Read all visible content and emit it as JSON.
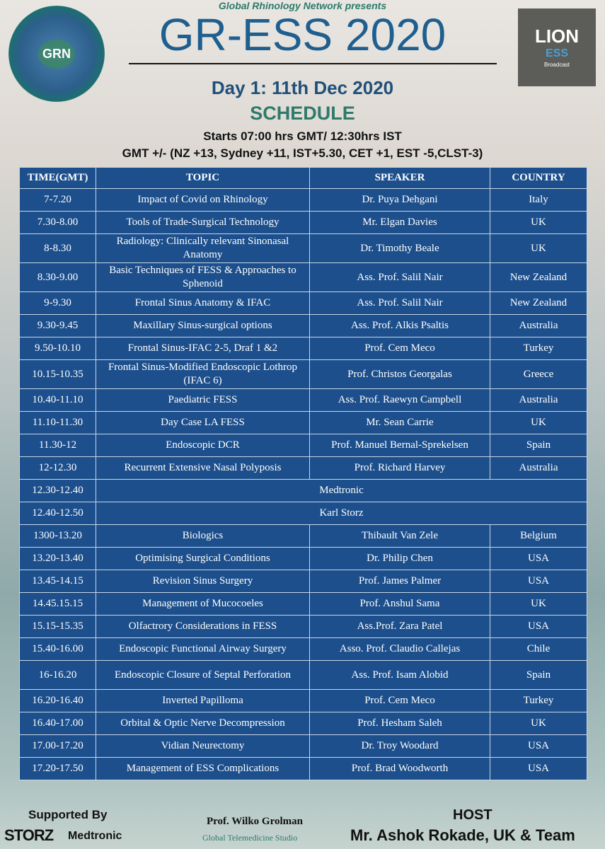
{
  "header": {
    "presents": "Global Rhinology Network presents",
    "title": "GR-ESS 2020",
    "day": "Day 1: 11th Dec 2020",
    "schedule": "SCHEDULE",
    "starts": "Starts 07:00 hrs GMT/ 12:30hrs IST",
    "gmt": "GMT +/- (NZ +13, Sydney +11, IST+5.30, CET +1, EST  -5,CLST-3)"
  },
  "logos": {
    "grn": "GRN",
    "lion": "LION",
    "lion_ess": "ESS",
    "lion_broadcast": "Broadcast"
  },
  "table": {
    "headers": [
      "TIME(GMT)",
      "TOPIC",
      "SPEAKER",
      "COUNTRY"
    ],
    "rows": [
      {
        "time": "7-7.20",
        "topic": "Impact of Covid on Rhinology",
        "speaker": "Dr. Puya Dehgani",
        "country": "Italy"
      },
      {
        "time": "7.30-8.00",
        "topic": "Tools of Trade-Surgical Technology",
        "speaker": "Mr. Elgan Davies",
        "country": "UK"
      },
      {
        "time": "8-8.30",
        "topic": "Radiology: Clinically relevant Sinonasal Anatomy",
        "speaker": "Dr. Timothy Beale",
        "country": "UK",
        "tall": true
      },
      {
        "time": "8.30-9.00",
        "topic": "Basic Techniques of FESS & Approaches to Sphenoid",
        "speaker": "Ass. Prof. Salil Nair",
        "country": "New Zealand",
        "tall": true
      },
      {
        "time": "9-9.30",
        "topic": "Frontal Sinus Anatomy & IFAC",
        "speaker": "Ass. Prof. Salil Nair",
        "country": "New Zealand"
      },
      {
        "time": "9.30-9.45",
        "topic": "Maxillary Sinus-surgical options",
        "speaker": "Ass. Prof. Alkis Psaltis",
        "country": "Australia"
      },
      {
        "time": "9.50-10.10",
        "topic": "Frontal Sinus-IFAC 2-5, Draf 1 &2",
        "speaker": "Prof. Cem Meco",
        "country": "Turkey"
      },
      {
        "time": "10.15-10.35",
        "topic": "Frontal Sinus-Modified Endoscopic Lothrop (IFAC 6)",
        "speaker": "Prof. Christos Georgalas",
        "country": "Greece",
        "tall": true
      },
      {
        "time": "10.40-11.10",
        "topic": "Paediatric FESS",
        "speaker": "Ass. Prof. Raewyn Campbell",
        "country": "Australia"
      },
      {
        "time": "11.10-11.30",
        "topic": "Day Case LA FESS",
        "speaker": "Mr. Sean Carrie",
        "country": "UK"
      },
      {
        "time": "11.30-12",
        "topic": "Endoscopic DCR",
        "speaker": "Prof. Manuel Bernal-Sprekelsen",
        "country": "Spain"
      },
      {
        "time": "12-12.30",
        "topic": "Recurrent Extensive Nasal Polyposis",
        "speaker": "Prof. Richard Harvey",
        "country": "Australia"
      },
      {
        "time": "12.30-12.40",
        "span": "Medtronic"
      },
      {
        "time": "12.40-12.50",
        "span": "Karl Storz"
      },
      {
        "time": "1300-13.20",
        "topic": "Biologics",
        "speaker": "Thibault Van Zele",
        "country": "Belgium"
      },
      {
        "time": "13.20-13.40",
        "topic": "Optimising Surgical Conditions",
        "speaker": "Dr. Philip Chen",
        "country": "USA"
      },
      {
        "time": "13.45-14.15",
        "topic": "Revision Sinus Surgery",
        "speaker": "Prof. James Palmer",
        "country": "USA"
      },
      {
        "time": "14.45.15.15",
        "topic": "Management of Mucocoeles",
        "speaker": "Prof. Anshul Sama",
        "country": "UK"
      },
      {
        "time": "15.15-15.35",
        "topic": "Olfactrory Considerations in FESS",
        "speaker": "Ass.Prof. Zara Patel",
        "country": "USA"
      },
      {
        "time": "15.40-16.00",
        "topic": "Endoscopic Functional Airway Surgery",
        "speaker": "Asso. Prof. Claudio Callejas",
        "country": "Chile"
      },
      {
        "time": "16-16.20",
        "topic": "Endoscopic Closure of Septal Perforation",
        "speaker": "Ass. Prof. Isam Alobid",
        "country": "Spain",
        "tall": true
      },
      {
        "time": "16.20-16.40",
        "topic": "Inverted Papilloma",
        "speaker": "Prof. Cem Meco",
        "country": "Turkey"
      },
      {
        "time": "16.40-17.00",
        "topic": "Orbital & Optic Nerve Decompression",
        "speaker": "Prof. Hesham Saleh",
        "country": "UK"
      },
      {
        "time": "17.00-17.20",
        "topic": "Vidian Neurectomy",
        "speaker": "Dr. Troy Woodard",
        "country": "USA"
      },
      {
        "time": "17.20-17.50",
        "topic": "Management of ESS Complications",
        "speaker": "Prof. Brad Woodworth",
        "country": "USA"
      }
    ]
  },
  "footer": {
    "supported_by": "Supported By",
    "storz": "STORZ",
    "medtronic": "Medtronic",
    "studio_host": "Prof. Wilko Grolman",
    "studio": "Global Telemedicine Studio",
    "host_label": "HOST",
    "host": "Mr. Ashok Rokade, UK & Team"
  },
  "colors": {
    "table_bg": "#1c4f8c",
    "title": "#1f5f8f",
    "accent_teal": "#2e7a6b"
  }
}
